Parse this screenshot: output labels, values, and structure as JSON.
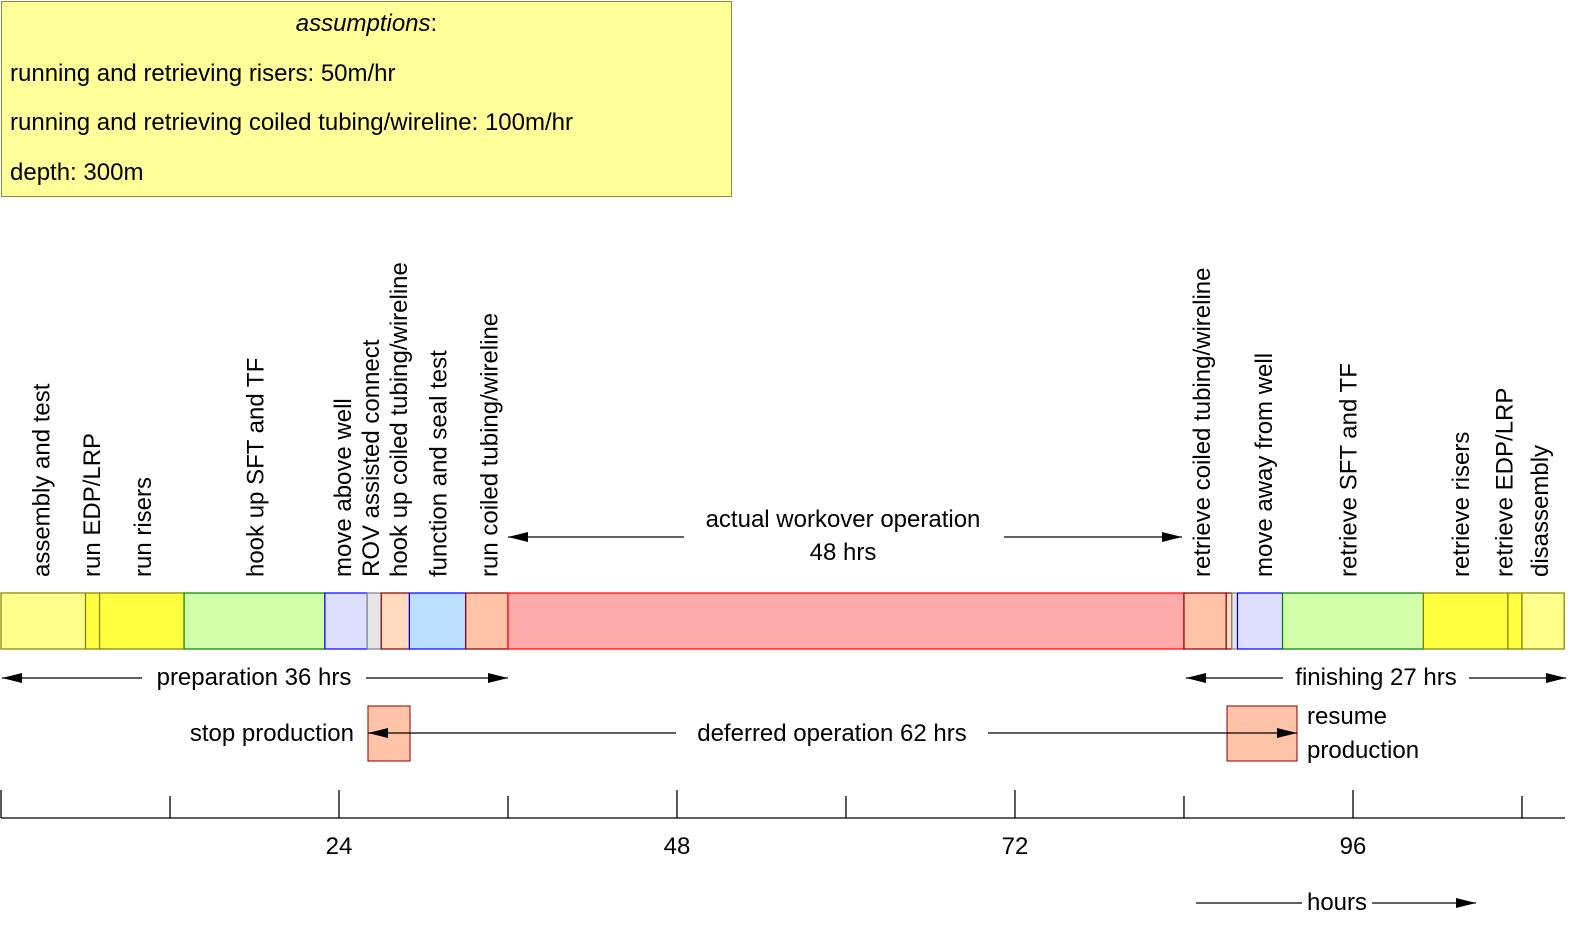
{
  "assumptions": {
    "title": "assumptions",
    "title_suffix": ":",
    "lines": [
      "running and retrieving risers: 50m/hr",
      "running and retrieving coiled tubing/wireline: 100m/hr",
      "depth: 300m"
    ],
    "fill": "#ffff99"
  },
  "segments": [
    {
      "start": 0,
      "end": 6,
      "fill": "#ffff8c",
      "stroke": "#808000"
    },
    {
      "start": 6,
      "end": 7,
      "fill": "#ffff40",
      "stroke": "#808000"
    },
    {
      "start": 7,
      "end": 13,
      "fill": "#ffff40",
      "stroke": "#808000"
    },
    {
      "start": 13,
      "end": 23,
      "fill": "#d4ffaa",
      "stroke": "#008000"
    },
    {
      "start": 23,
      "end": 26,
      "fill": "#dedeff",
      "stroke": "#0000ff"
    },
    {
      "start": 26,
      "end": 27,
      "fill": "#e6e6e6",
      "stroke": "#808080"
    },
    {
      "start": 27,
      "end": 29,
      "fill": "#ffdcc0",
      "stroke": "#800000"
    },
    {
      "start": 29,
      "end": 33,
      "fill": "#bbdfff",
      "stroke": "#0000ff"
    },
    {
      "start": 33,
      "end": 36,
      "fill": "#ffc4a8",
      "stroke": "#800000"
    },
    {
      "start": 36,
      "end": 84,
      "fill": "#ffaaaa",
      "stroke": "#ff0000"
    },
    {
      "start": 84,
      "end": 87,
      "fill": "#ffc4a8",
      "stroke": "#800000"
    },
    {
      "start": 87,
      "end": 87.4,
      "fill": "#ffdcc0",
      "stroke": "#800000"
    },
    {
      "start": 87.4,
      "end": 87.8,
      "fill": "#e6e6e6",
      "stroke": "#808080"
    },
    {
      "start": 87.8,
      "end": 91,
      "fill": "#dedeff",
      "stroke": "#0000ff"
    },
    {
      "start": 91,
      "end": 101,
      "fill": "#d4ffaa",
      "stroke": "#008000"
    },
    {
      "start": 101,
      "end": 107,
      "fill": "#ffff40",
      "stroke": "#808000"
    },
    {
      "start": 107,
      "end": 108,
      "fill": "#ffff40",
      "stroke": "#808000"
    },
    {
      "start": 108,
      "end": 111,
      "fill": "#ffff8c",
      "stroke": "#808000"
    }
  ],
  "step_labels": [
    {
      "text": "assembly and test",
      "hour": 2.8
    },
    {
      "text": "run EDP/LRP",
      "hour": 6.4
    },
    {
      "text": "run risers",
      "hour": 10
    },
    {
      "text": "hook up SFT and TF",
      "hour": 18
    },
    {
      "text": "move above well",
      "hour": 24.2
    },
    {
      "text": "ROV assisted connect",
      "hour": 26.2
    },
    {
      "text": "hook up coiled tubing/wireline",
      "hour": 28.2
    },
    {
      "text": "function and seal test",
      "hour": 31
    },
    {
      "text": "run coiled tubing/wireline",
      "hour": 34.6
    },
    {
      "text": "retrieve coiled tubing/wireline",
      "hour": 85.2
    },
    {
      "text": "move away from well",
      "hour": 89.6
    },
    {
      "text": "retrieve SFT and TF",
      "hour": 95.6
    },
    {
      "text": "retrieve risers",
      "hour": 103.6
    },
    {
      "text": "retrieve EDP/LRP",
      "hour": 106.7
    },
    {
      "text": "disassembly",
      "hour": 109.2
    }
  ],
  "spans": {
    "workover_line1": "actual workover operation",
    "workover_line2": "48 hrs",
    "preparation": "preparation 36 hrs",
    "finishing": "finishing 27 hrs",
    "deferred": "deferred operation 62 hrs",
    "stop_production": "stop production",
    "resume_line1": "resume",
    "resume_line2": "production"
  },
  "axis": {
    "ticks": [
      0,
      12,
      24,
      36,
      48,
      60,
      72,
      84,
      96,
      108
    ],
    "labels": [
      "24",
      "48",
      "72",
      "96"
    ],
    "label_hours": [
      24,
      48,
      72,
      96
    ],
    "title": "hours"
  }
}
